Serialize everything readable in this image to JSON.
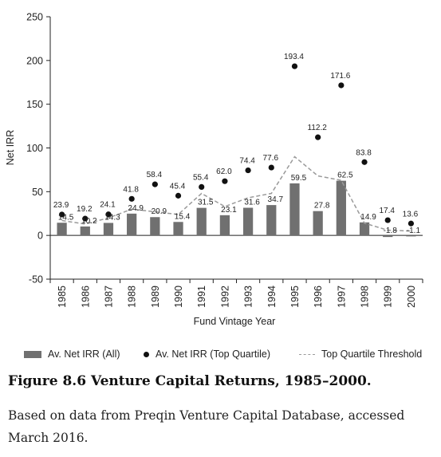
{
  "chart_data": {
    "type": "bar",
    "categories": [
      "1985",
      "1986",
      "1987",
      "1988",
      "1989",
      "1990",
      "1991",
      "1992",
      "1993",
      "1994",
      "1995",
      "1996",
      "1997",
      "1998",
      "1999",
      "2000"
    ],
    "series": [
      {
        "name": "Av. Net IRR (All)",
        "kind": "bar",
        "color": "#707070",
        "values": [
          14.5,
          10.2,
          14.3,
          24.9,
          20.9,
          15.4,
          31.5,
          23.1,
          31.6,
          34.7,
          59.5,
          27.8,
          62.5,
          14.9,
          -1.8,
          -1.1
        ]
      },
      {
        "name": "Av. Net IRR (Top Quartile)",
        "kind": "scatter",
        "color": "#111111",
        "values": [
          23.9,
          19.2,
          24.1,
          41.8,
          58.4,
          45.4,
          55.4,
          62.0,
          74.4,
          77.6,
          193.4,
          112.2,
          171.6,
          83.8,
          17.4,
          13.6
        ]
      },
      {
        "name": "Top Quartile Threshold",
        "kind": "line",
        "color": "#9a9a9a",
        "values": [
          17,
          13,
          20,
          30,
          27,
          24,
          48,
          33,
          43,
          48,
          90,
          68,
          63,
          14,
          6,
          5
        ]
      }
    ],
    "bar_labels": [
      "14.5",
      "10.2",
      "14.3",
      "24.9",
      "20.9",
      "15.4",
      "31.5",
      "23.1",
      "31.6",
      "34.7",
      "59.5",
      "27.8",
      "62.5",
      "14.9",
      "-1.8",
      "-1.1"
    ],
    "point_labels": [
      "23.9",
      "19.2",
      "24.1",
      "41.8",
      "58.4",
      "45.4",
      "55.4",
      "62.0",
      "74.4",
      "77.6",
      "193.4",
      "112.2",
      "171.6",
      "83.8",
      "17.4",
      "13.6"
    ],
    "xlabel": "Fund Vintage Year",
    "ylabel": "Net IRR",
    "ylim": [
      -50,
      250
    ],
    "yticks": [
      -50,
      0,
      50,
      100,
      150,
      200,
      250
    ],
    "grid": false,
    "legend_position": "bottom"
  },
  "caption": {
    "title": "Figure 8.6 Venture Capital Returns, 1985–2000.",
    "note": "Based on data from Preqin Venture Capital Database, accessed March 2016."
  }
}
